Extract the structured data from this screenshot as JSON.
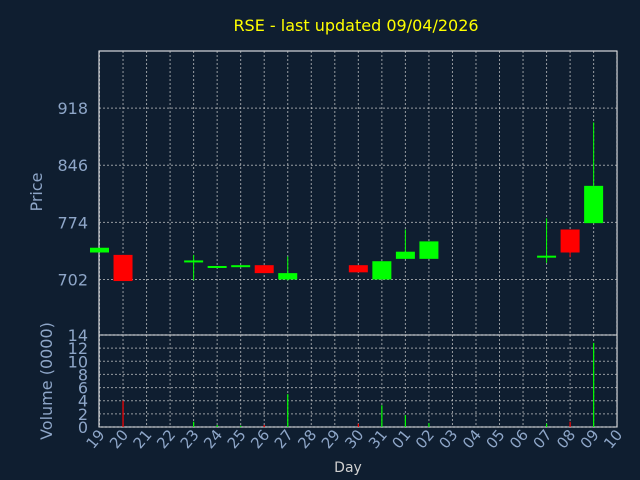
{
  "chart_data": {
    "type": "candlestick",
    "title": "RSE - last updated 09/04/2026",
    "xlabel": "Day",
    "ylabel": "Price",
    "volume_label": "Volume (0000)",
    "x_ticks": [
      "19",
      "20",
      "21",
      "22",
      "23",
      "24",
      "25",
      "26",
      "27",
      "28",
      "29",
      "30",
      "31",
      "01",
      "02",
      "03",
      "04",
      "05",
      "06",
      "07",
      "08",
      "09",
      "10"
    ],
    "price_ticks": [
      702,
      774,
      846,
      918
    ],
    "volume_ticks": [
      0,
      2,
      4,
      6,
      8,
      10,
      12,
      14
    ],
    "price_range": [
      632,
      990
    ],
    "volume_range": [
      0,
      14
    ],
    "grid": true,
    "colors": {
      "background": "#0f1e30",
      "plot_border": "#ffffff",
      "grid": "#d0d0d0",
      "axis_text": "#8ea6c8",
      "title": "#ffff00",
      "up": "#00ff00",
      "down": "#ff0000"
    },
    "candles": [
      {
        "x": "19",
        "open": 736,
        "close": 742,
        "high": 742,
        "low": 736
      },
      {
        "x": "20",
        "open": 733,
        "close": 700,
        "high": 733,
        "low": 700
      },
      {
        "x": "23",
        "open": 724,
        "close": 726,
        "high": 733,
        "low": 701
      },
      {
        "x": "24",
        "open": 718,
        "close": 719,
        "high": 719,
        "low": 717
      },
      {
        "x": "25",
        "open": 719,
        "close": 720,
        "high": 720,
        "low": 719
      },
      {
        "x": "26",
        "open": 720,
        "close": 710,
        "high": 720,
        "low": 710
      },
      {
        "x": "27",
        "open": 702,
        "close": 710,
        "high": 731,
        "low": 701
      },
      {
        "x": "30",
        "open": 720,
        "close": 711,
        "high": 720,
        "low": 711
      },
      {
        "x": "31",
        "open": 702,
        "close": 725,
        "high": 725,
        "low": 702
      },
      {
        "x": "01",
        "open": 728,
        "close": 737,
        "high": 765,
        "low": 728
      },
      {
        "x": "02",
        "open": 728,
        "close": 750,
        "high": 750,
        "low": 728
      },
      {
        "x": "07",
        "open": 730,
        "close": 732,
        "high": 779,
        "low": 723
      },
      {
        "x": "08",
        "open": 765,
        "close": 736,
        "high": 765,
        "low": 730
      },
      {
        "x": "09",
        "open": 773,
        "close": 820,
        "high": 900,
        "low": 773
      }
    ],
    "volume": [
      {
        "x": "19",
        "value": 0
      },
      {
        "x": "20",
        "value": 4,
        "dir": "down"
      },
      {
        "x": "23",
        "value": 0.8,
        "dir": "up"
      },
      {
        "x": "24",
        "value": 0.3,
        "dir": "up"
      },
      {
        "x": "25",
        "value": 0.2,
        "dir": "up"
      },
      {
        "x": "26",
        "value": 0.3,
        "dir": "down"
      },
      {
        "x": "27",
        "value": 5,
        "dir": "up"
      },
      {
        "x": "30",
        "value": 0.5,
        "dir": "down"
      },
      {
        "x": "31",
        "value": 3.3,
        "dir": "up"
      },
      {
        "x": "01",
        "value": 1.8,
        "dir": "up"
      },
      {
        "x": "02",
        "value": 0.6,
        "dir": "up"
      },
      {
        "x": "07",
        "value": 0.5,
        "dir": "up"
      },
      {
        "x": "08",
        "value": 0.8,
        "dir": "down"
      },
      {
        "x": "09",
        "value": 12.8,
        "dir": "up"
      }
    ]
  }
}
